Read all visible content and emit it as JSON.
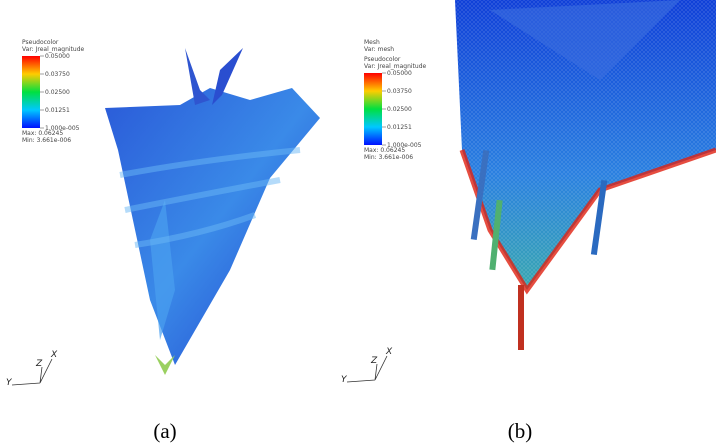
{
  "panels": [
    {
      "mesh": null,
      "legend": {
        "title": "Pseudocolor",
        "variable": "Var: Jreal_magnitude",
        "ticks": [
          "0.05000",
          "0.03750",
          "0.02500",
          "0.01251",
          "1.000e-005"
        ],
        "max": "Max: 0.06245",
        "min": "Min: 3.661e-006"
      },
      "axes": {
        "z": "Z",
        "x": "X",
        "y": "Y"
      },
      "caption": "(a)"
    },
    {
      "mesh": {
        "title": "Mesh",
        "variable": "Var: mesh"
      },
      "legend": {
        "title": "Pseudocolor",
        "variable": "Var: Jreal_magnitude",
        "ticks": [
          "0.05000",
          "0.03750",
          "0.02500",
          "0.01251",
          "1.000e-005"
        ],
        "max": "Max: 0.06245",
        "min": "Min: 3.661e-006"
      },
      "axes": {
        "z": "Z",
        "x": "X",
        "y": "Y"
      },
      "caption": "(b)"
    }
  ]
}
